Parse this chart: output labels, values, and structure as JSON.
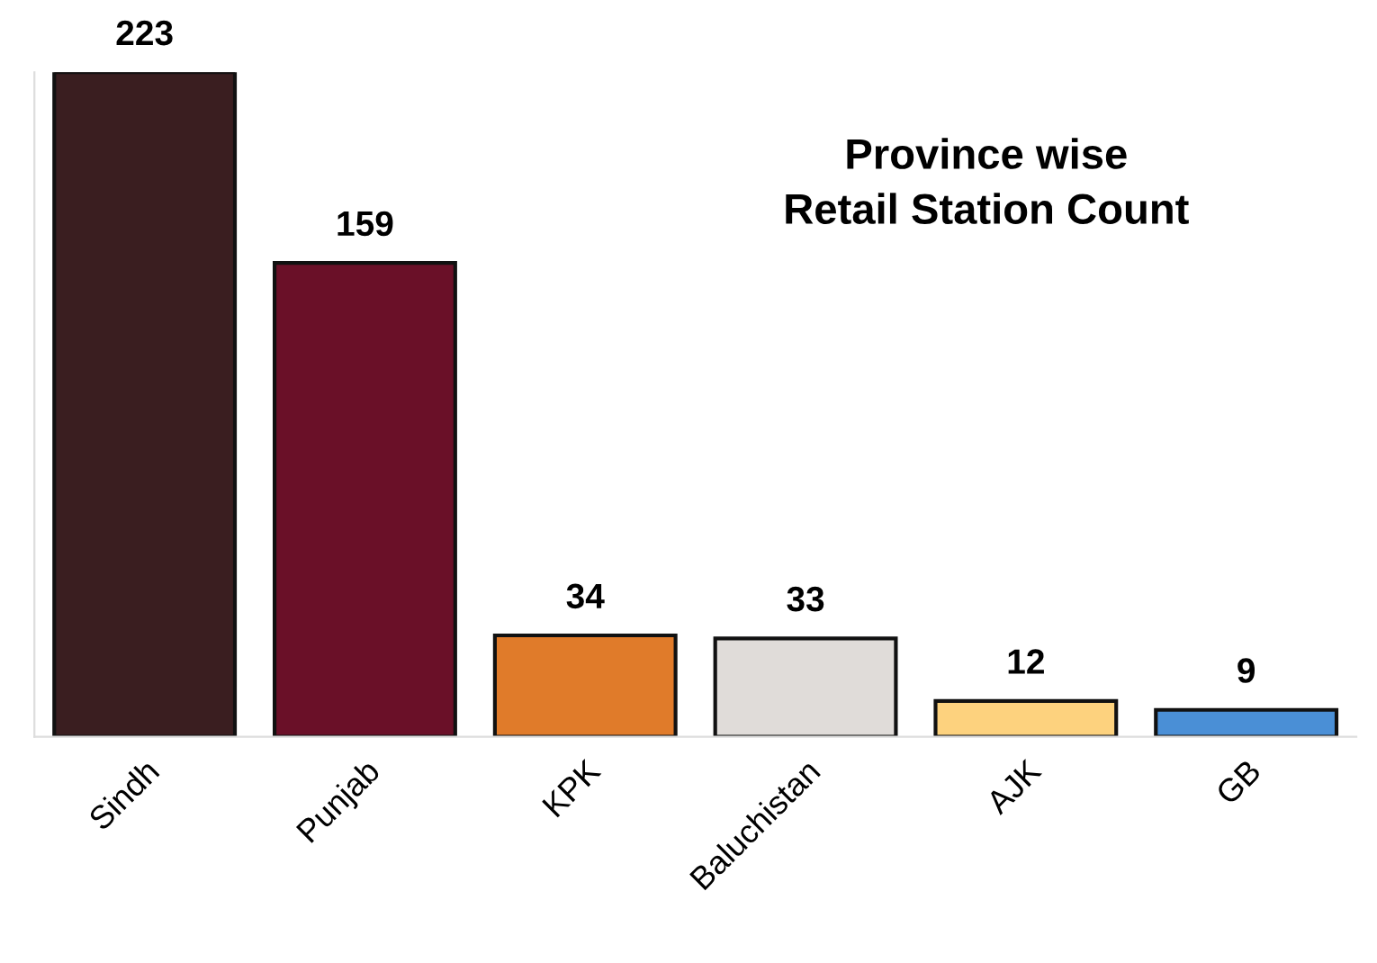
{
  "chart_data": {
    "type": "bar",
    "title": "Province wise\nRetail Station Count",
    "categories": [
      "Sindh",
      "Punjab",
      "KPK",
      "Baluchistan",
      "AJK",
      "GB"
    ],
    "values": [
      223,
      159,
      34,
      33,
      12,
      9
    ],
    "colors": [
      "#3a1e20",
      "#6a1028",
      "#e07b2a",
      "#e0dcd9",
      "#fdd27e",
      "#4a8fd6"
    ],
    "data_labels": true,
    "grid": false,
    "legend": false
  }
}
